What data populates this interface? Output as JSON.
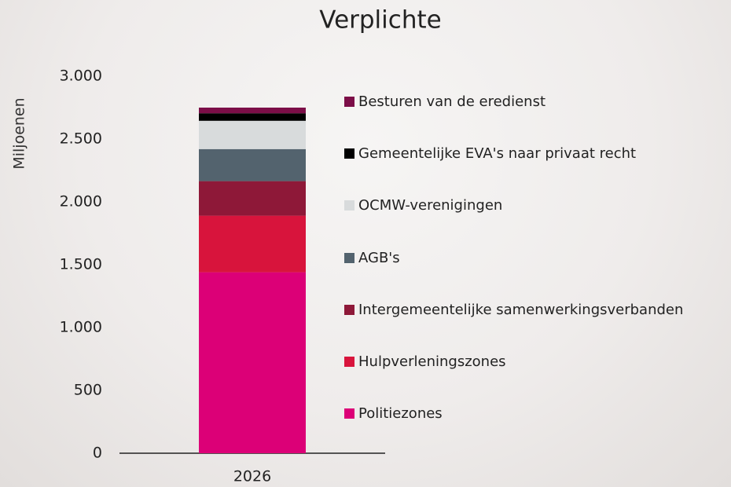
{
  "chart_data": {
    "type": "stacked_bar",
    "title": "Verplichte",
    "y_label": "Miljoenen",
    "categories": [
      "2026"
    ],
    "series": [
      {
        "name": "Politiezones",
        "color": "#dc0077",
        "values": [
          1440
        ]
      },
      {
        "name": "Hulpverleningszones",
        "color": "#d8143c",
        "values": [
          450
        ]
      },
      {
        "name": "Intergemeentelijke samenwerkingsverbanden",
        "color": "#8e1838",
        "values": [
          275
        ]
      },
      {
        "name": "AGB's",
        "color": "#53636e",
        "values": [
          255
        ]
      },
      {
        "name": "OCMW-verenigingen",
        "color": "#d8dbdc",
        "values": [
          225
        ]
      },
      {
        "name": "Gemeentelijke EVA's naar privaat recht",
        "color": "#000000",
        "values": [
          60
        ]
      },
      {
        "name": "Besturen van de eredienst",
        "color": "#7c0e48",
        "values": [
          45
        ]
      }
    ],
    "ylim": [
      0,
      3000
    ],
    "yticks": [
      0,
      500,
      {
        "value": 1000,
        "label": "1.000"
      },
      {
        "value": 1500,
        "label": "1.500"
      },
      {
        "value": 2000,
        "label": "2.000"
      },
      {
        "value": 2500,
        "label": "2.500"
      },
      {
        "value": 3000,
        "label": "3.000"
      }
    ],
    "legend": "right"
  }
}
